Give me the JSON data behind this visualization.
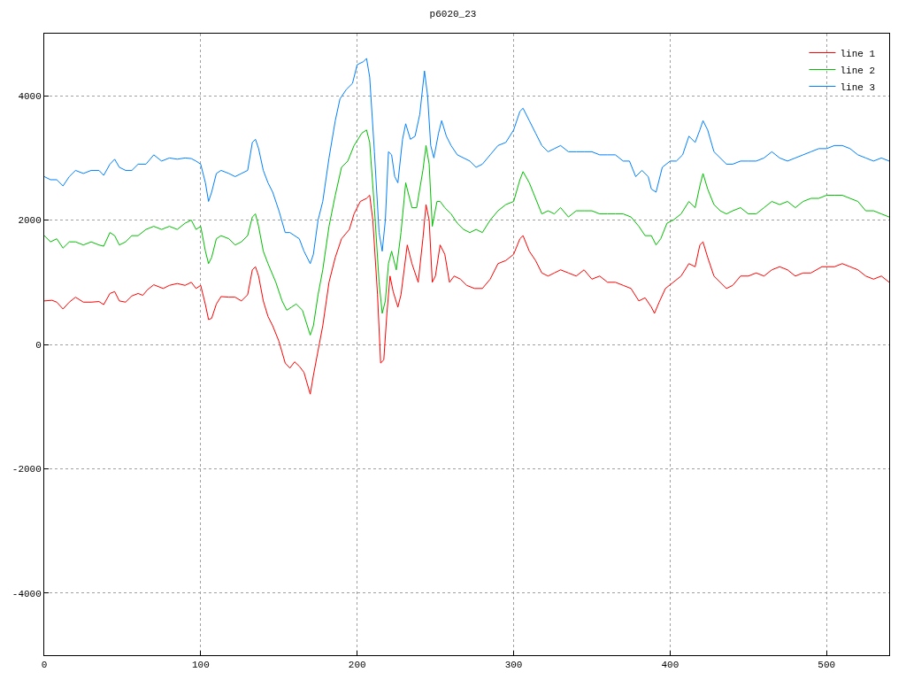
{
  "chart_data": {
    "type": "line",
    "title": "p6020_23",
    "xlim": [
      0,
      540
    ],
    "ylim": [
      -5000,
      5000
    ],
    "xticks": [
      0,
      100,
      200,
      300,
      400,
      500
    ],
    "yticks": [
      -4000,
      -2000,
      0,
      2000,
      4000
    ],
    "grid": true,
    "legend": "top right",
    "marker": "none",
    "line_style": "solid",
    "series": [
      {
        "name": "line 1",
        "color": "#ff0000",
        "x": [
          0,
          5,
          8,
          12,
          16,
          20,
          25,
          30,
          35,
          38,
          42,
          45,
          48,
          52,
          56,
          60,
          63,
          66,
          70,
          73,
          76,
          80,
          85,
          90,
          94,
          97,
          100,
          103,
          105,
          107,
          110,
          113,
          118,
          122,
          126,
          130,
          133,
          135,
          137,
          140,
          143,
          146,
          150,
          154,
          157,
          160,
          163,
          166,
          170,
          172,
          175,
          178,
          182,
          186,
          190,
          195,
          198,
          202,
          206,
          208,
          210,
          213,
          215,
          217,
          219,
          221,
          223,
          226,
          228,
          232,
          235,
          239,
          242,
          244,
          246,
          248,
          250,
          253,
          256,
          259,
          262,
          266,
          270,
          275,
          280,
          285,
          290,
          295,
          300,
          304,
          306,
          310,
          314,
          318,
          322,
          326,
          330,
          335,
          340,
          345,
          350,
          355,
          360,
          365,
          370,
          375,
          380,
          384,
          388,
          390,
          393,
          397,
          402,
          407,
          412,
          416,
          419,
          421,
          424,
          428,
          432,
          436,
          440,
          445,
          450,
          455,
          460,
          465,
          470,
          475,
          480,
          485,
          490,
          497,
          505,
          510,
          515,
          520,
          525,
          530,
          535,
          540
        ],
        "values": [
          700,
          710,
          680,
          570,
          680,
          760,
          680,
          680,
          690,
          640,
          820,
          850,
          700,
          680,
          780,
          820,
          790,
          880,
          960,
          930,
          900,
          950,
          980,
          950,
          1000,
          900,
          950,
          640,
          400,
          420,
          650,
          770,
          760,
          760,
          700,
          800,
          1200,
          1250,
          1100,
          700,
          450,
          300,
          50,
          -300,
          -380,
          -280,
          -350,
          -450,
          -800,
          -500,
          -100,
          300,
          1000,
          1400,
          1700,
          1850,
          2100,
          2300,
          2350,
          2400,
          2000,
          800,
          -300,
          -250,
          500,
          1100,
          850,
          600,
          800,
          1600,
          1300,
          1000,
          1700,
          2250,
          2000,
          1000,
          1100,
          1600,
          1450,
          1000,
          1100,
          1050,
          950,
          900,
          900,
          1050,
          1300,
          1350,
          1450,
          1700,
          1750,
          1500,
          1350,
          1150,
          1100,
          1150,
          1200,
          1150,
          1100,
          1200,
          1050,
          1100,
          1000,
          1000,
          950,
          900,
          700,
          750,
          600,
          500,
          680,
          900,
          1000,
          1100,
          1300,
          1250,
          1600,
          1650,
          1400,
          1100,
          1000,
          900,
          950,
          1100,
          1100,
          1150,
          1100,
          1200,
          1250,
          1200,
          1100,
          1150,
          1150,
          1250,
          1250,
          1300,
          1250,
          1200,
          1100,
          1050,
          1100,
          1000
        ]
      },
      {
        "name": "line 2",
        "color": "#00c000",
        "x": [
          0,
          4,
          8,
          12,
          16,
          20,
          25,
          30,
          35,
          38,
          42,
          45,
          48,
          52,
          56,
          60,
          65,
          70,
          75,
          80,
          85,
          90,
          94,
          97,
          100,
          103,
          105,
          107,
          110,
          113,
          118,
          122,
          126,
          130,
          133,
          135,
          137,
          140,
          143,
          148,
          152,
          155,
          158,
          161,
          165,
          170,
          172,
          175,
          178,
          182,
          186,
          190,
          194,
          198,
          203,
          206,
          208,
          211,
          214,
          216,
          218,
          220,
          222,
          225,
          228,
          231,
          235,
          238,
          242,
          244,
          246,
          248,
          251,
          253,
          256,
          260,
          264,
          268,
          272,
          276,
          280,
          285,
          290,
          295,
          300,
          304,
          306,
          310,
          314,
          318,
          322,
          326,
          330,
          335,
          340,
          345,
          350,
          355,
          360,
          365,
          370,
          375,
          380,
          384,
          388,
          391,
          394,
          398,
          402,
          407,
          412,
          416,
          419,
          421,
          424,
          428,
          432,
          436,
          440,
          445,
          450,
          455,
          460,
          465,
          470,
          475,
          480,
          485,
          490,
          495,
          500,
          505,
          510,
          515,
          520,
          525,
          530,
          535,
          540
        ],
        "values": [
          1750,
          1650,
          1700,
          1550,
          1650,
          1650,
          1600,
          1650,
          1600,
          1580,
          1800,
          1750,
          1600,
          1650,
          1750,
          1750,
          1850,
          1900,
          1850,
          1900,
          1850,
          1950,
          2000,
          1850,
          1900,
          1500,
          1300,
          1400,
          1700,
          1750,
          1700,
          1600,
          1650,
          1750,
          2050,
          2100,
          1900,
          1500,
          1300,
          1000,
          700,
          550,
          600,
          650,
          550,
          150,
          300,
          800,
          1200,
          1900,
          2400,
          2850,
          2950,
          3200,
          3400,
          3450,
          3250,
          2200,
          1000,
          500,
          700,
          1300,
          1500,
          1200,
          1800,
          2600,
          2200,
          2200,
          2800,
          3200,
          2900,
          1900,
          2300,
          2300,
          2200,
          2100,
          1950,
          1850,
          1800,
          1850,
          1800,
          2000,
          2150,
          2250,
          2300,
          2650,
          2780,
          2600,
          2350,
          2100,
          2150,
          2100,
          2200,
          2050,
          2150,
          2150,
          2150,
          2100,
          2100,
          2100,
          2100,
          2050,
          1900,
          1750,
          1750,
          1600,
          1700,
          1950,
          2000,
          2100,
          2300,
          2200,
          2550,
          2750,
          2500,
          2250,
          2150,
          2100,
          2150,
          2200,
          2100,
          2100,
          2200,
          2300,
          2250,
          2300,
          2200,
          2300,
          2350,
          2350,
          2400,
          2400,
          2400,
          2350,
          2300,
          2150,
          2150,
          2100,
          2050
        ]
      },
      {
        "name": "line 3",
        "color": "#0080ff",
        "x": [
          0,
          4,
          8,
          12,
          16,
          20,
          25,
          30,
          35,
          38,
          42,
          45,
          48,
          52,
          56,
          60,
          65,
          70,
          75,
          80,
          85,
          90,
          94,
          97,
          100,
          103,
          105,
          107,
          110,
          113,
          118,
          122,
          126,
          130,
          133,
          135,
          137,
          140,
          143,
          146,
          150,
          154,
          157,
          160,
          163,
          166,
          170,
          172,
          175,
          178,
          182,
          186,
          189,
          193,
          197,
          200,
          204,
          206,
          208,
          211,
          214,
          216,
          218,
          220,
          222,
          224,
          226,
          229,
          231,
          234,
          237,
          240,
          243,
          245,
          247,
          249,
          252,
          254,
          257,
          260,
          264,
          268,
          272,
          276,
          280,
          285,
          290,
          295,
          300,
          304,
          306,
          310,
          314,
          318,
          322,
          326,
          330,
          335,
          340,
          345,
          350,
          355,
          360,
          365,
          370,
          374,
          378,
          382,
          386,
          388,
          391,
          395,
          400,
          404,
          408,
          412,
          416,
          419,
          421,
          424,
          428,
          432,
          436,
          440,
          445,
          450,
          455,
          460,
          465,
          470,
          475,
          480,
          485,
          490,
          495,
          500,
          505,
          510,
          515,
          520,
          525,
          530,
          535,
          540
        ],
        "values": [
          2700,
          2650,
          2650,
          2550,
          2700,
          2800,
          2750,
          2800,
          2800,
          2720,
          2900,
          2980,
          2850,
          2800,
          2800,
          2900,
          2900,
          3050,
          2950,
          3000,
          2980,
          3000,
          2990,
          2950,
          2900,
          2600,
          2300,
          2450,
          2750,
          2800,
          2750,
          2700,
          2750,
          2800,
          3250,
          3300,
          3150,
          2800,
          2600,
          2450,
          2150,
          1800,
          1800,
          1750,
          1700,
          1500,
          1300,
          1450,
          2000,
          2300,
          3000,
          3600,
          3950,
          4100,
          4200,
          4500,
          4550,
          4600,
          4300,
          3100,
          1800,
          1500,
          2000,
          3100,
          3050,
          2700,
          2600,
          3300,
          3550,
          3300,
          3350,
          3700,
          4400,
          4000,
          3200,
          3000,
          3400,
          3600,
          3350,
          3200,
          3050,
          3000,
          2950,
          2850,
          2900,
          3050,
          3200,
          3250,
          3450,
          3750,
          3800,
          3600,
          3400,
          3200,
          3100,
          3150,
          3200,
          3100,
          3100,
          3100,
          3100,
          3050,
          3050,
          3050,
          2950,
          2950,
          2700,
          2800,
          2700,
          2500,
          2450,
          2850,
          2950,
          2950,
          3050,
          3350,
          3250,
          3450,
          3600,
          3450,
          3100,
          3000,
          2900,
          2900,
          2950,
          2950,
          2950,
          3000,
          3100,
          3000,
          2950,
          3000,
          3050,
          3100,
          3150,
          3150,
          3200,
          3200,
          3150,
          3050,
          3000,
          2950,
          3000,
          2950
        ]
      }
    ]
  }
}
